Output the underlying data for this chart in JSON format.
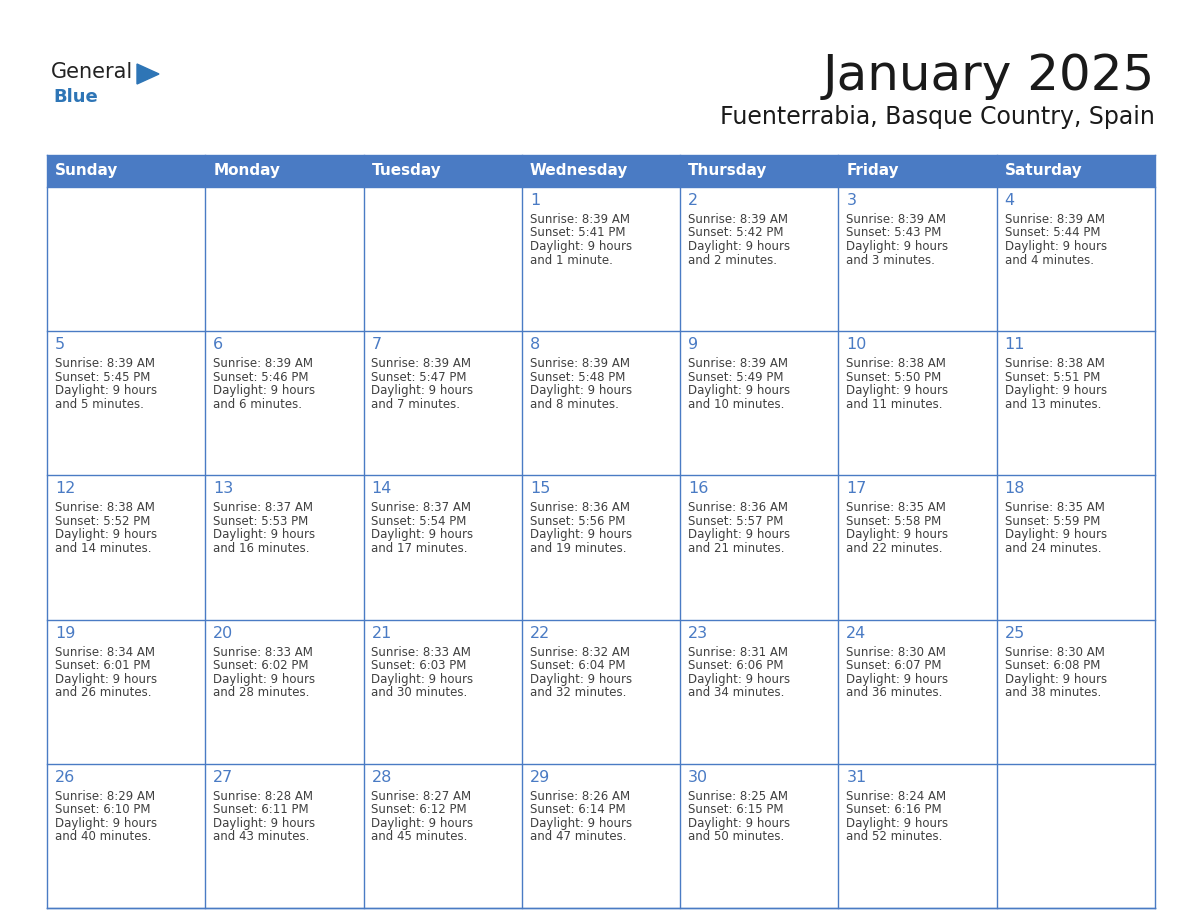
{
  "title": "January 2025",
  "subtitle": "Fuenterrabia, Basque Country, Spain",
  "days_of_week": [
    "Sunday",
    "Monday",
    "Tuesday",
    "Wednesday",
    "Thursday",
    "Friday",
    "Saturday"
  ],
  "header_bg": "#4A7BC4",
  "header_text": "#FFFFFF",
  "cell_bg": "#FFFFFF",
  "border_color": "#4A7BC4",
  "day_num_color": "#4A7BC4",
  "text_color": "#404040",
  "logo_general_color": "#222222",
  "logo_blue_color": "#2E75B6",
  "calendar_data": {
    "week1": [
      {
        "date": "",
        "sunrise": "",
        "sunset": "",
        "daylight": ""
      },
      {
        "date": "",
        "sunrise": "",
        "sunset": "",
        "daylight": ""
      },
      {
        "date": "",
        "sunrise": "",
        "sunset": "",
        "daylight": ""
      },
      {
        "date": "1",
        "sunrise": "8:39 AM",
        "sunset": "5:41 PM",
        "daylight": "9 hours and 1 minute."
      },
      {
        "date": "2",
        "sunrise": "8:39 AM",
        "sunset": "5:42 PM",
        "daylight": "9 hours and 2 minutes."
      },
      {
        "date": "3",
        "sunrise": "8:39 AM",
        "sunset": "5:43 PM",
        "daylight": "9 hours and 3 minutes."
      },
      {
        "date": "4",
        "sunrise": "8:39 AM",
        "sunset": "5:44 PM",
        "daylight": "9 hours and 4 minutes."
      }
    ],
    "week2": [
      {
        "date": "5",
        "sunrise": "8:39 AM",
        "sunset": "5:45 PM",
        "daylight": "9 hours and 5 minutes."
      },
      {
        "date": "6",
        "sunrise": "8:39 AM",
        "sunset": "5:46 PM",
        "daylight": "9 hours and 6 minutes."
      },
      {
        "date": "7",
        "sunrise": "8:39 AM",
        "sunset": "5:47 PM",
        "daylight": "9 hours and 7 minutes."
      },
      {
        "date": "8",
        "sunrise": "8:39 AM",
        "sunset": "5:48 PM",
        "daylight": "9 hours and 8 minutes."
      },
      {
        "date": "9",
        "sunrise": "8:39 AM",
        "sunset": "5:49 PM",
        "daylight": "9 hours and 10 minutes."
      },
      {
        "date": "10",
        "sunrise": "8:38 AM",
        "sunset": "5:50 PM",
        "daylight": "9 hours and 11 minutes."
      },
      {
        "date": "11",
        "sunrise": "8:38 AM",
        "sunset": "5:51 PM",
        "daylight": "9 hours and 13 minutes."
      }
    ],
    "week3": [
      {
        "date": "12",
        "sunrise": "8:38 AM",
        "sunset": "5:52 PM",
        "daylight": "9 hours and 14 minutes."
      },
      {
        "date": "13",
        "sunrise": "8:37 AM",
        "sunset": "5:53 PM",
        "daylight": "9 hours and 16 minutes."
      },
      {
        "date": "14",
        "sunrise": "8:37 AM",
        "sunset": "5:54 PM",
        "daylight": "9 hours and 17 minutes."
      },
      {
        "date": "15",
        "sunrise": "8:36 AM",
        "sunset": "5:56 PM",
        "daylight": "9 hours and 19 minutes."
      },
      {
        "date": "16",
        "sunrise": "8:36 AM",
        "sunset": "5:57 PM",
        "daylight": "9 hours and 21 minutes."
      },
      {
        "date": "17",
        "sunrise": "8:35 AM",
        "sunset": "5:58 PM",
        "daylight": "9 hours and 22 minutes."
      },
      {
        "date": "18",
        "sunrise": "8:35 AM",
        "sunset": "5:59 PM",
        "daylight": "9 hours and 24 minutes."
      }
    ],
    "week4": [
      {
        "date": "19",
        "sunrise": "8:34 AM",
        "sunset": "6:01 PM",
        "daylight": "9 hours and 26 minutes."
      },
      {
        "date": "20",
        "sunrise": "8:33 AM",
        "sunset": "6:02 PM",
        "daylight": "9 hours and 28 minutes."
      },
      {
        "date": "21",
        "sunrise": "8:33 AM",
        "sunset": "6:03 PM",
        "daylight": "9 hours and 30 minutes."
      },
      {
        "date": "22",
        "sunrise": "8:32 AM",
        "sunset": "6:04 PM",
        "daylight": "9 hours and 32 minutes."
      },
      {
        "date": "23",
        "sunrise": "8:31 AM",
        "sunset": "6:06 PM",
        "daylight": "9 hours and 34 minutes."
      },
      {
        "date": "24",
        "sunrise": "8:30 AM",
        "sunset": "6:07 PM",
        "daylight": "9 hours and 36 minutes."
      },
      {
        "date": "25",
        "sunrise": "8:30 AM",
        "sunset": "6:08 PM",
        "daylight": "9 hours and 38 minutes."
      }
    ],
    "week5": [
      {
        "date": "26",
        "sunrise": "8:29 AM",
        "sunset": "6:10 PM",
        "daylight": "9 hours and 40 minutes."
      },
      {
        "date": "27",
        "sunrise": "8:28 AM",
        "sunset": "6:11 PM",
        "daylight": "9 hours and 43 minutes."
      },
      {
        "date": "28",
        "sunrise": "8:27 AM",
        "sunset": "6:12 PM",
        "daylight": "9 hours and 45 minutes."
      },
      {
        "date": "29",
        "sunrise": "8:26 AM",
        "sunset": "6:14 PM",
        "daylight": "9 hours and 47 minutes."
      },
      {
        "date": "30",
        "sunrise": "8:25 AM",
        "sunset": "6:15 PM",
        "daylight": "9 hours and 50 minutes."
      },
      {
        "date": "31",
        "sunrise": "8:24 AM",
        "sunset": "6:16 PM",
        "daylight": "9 hours and 52 minutes."
      },
      {
        "date": "",
        "sunrise": "",
        "sunset": "",
        "daylight": ""
      }
    ]
  }
}
